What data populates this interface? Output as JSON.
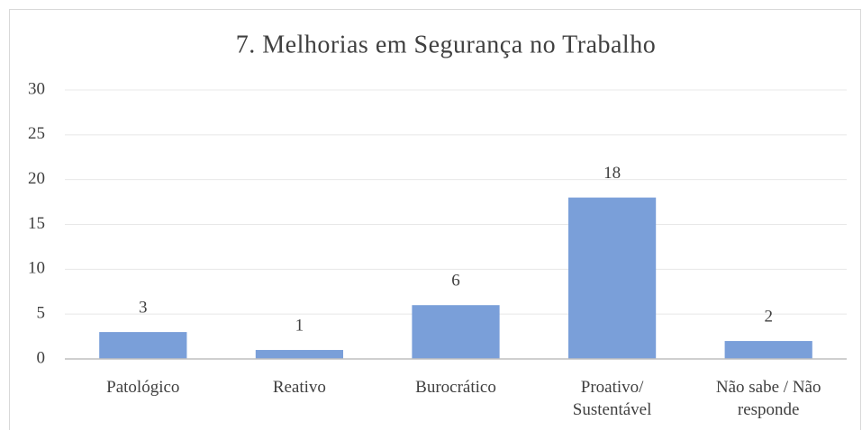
{
  "chart_data": {
    "type": "bar",
    "title": "7. Melhorias em Segurança no Trabalho",
    "categories": [
      "Patológico",
      "Reativo",
      "Burocrático",
      "Proativo/ Sustentável",
      "Não sabe / Não responde"
    ],
    "values": [
      3,
      1,
      6,
      18,
      2
    ],
    "color": "#7a9fd9",
    "ylim": [
      0,
      30
    ],
    "yticks": [
      0,
      5,
      10,
      15,
      20,
      25,
      30
    ],
    "grid": true
  }
}
